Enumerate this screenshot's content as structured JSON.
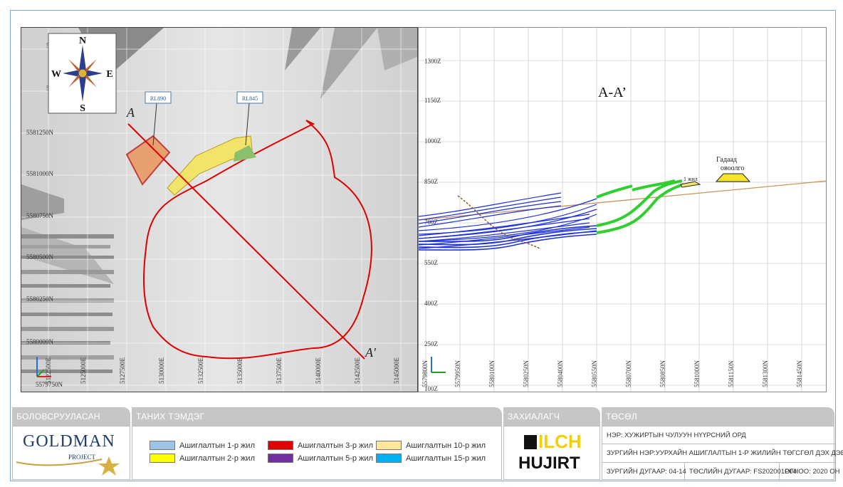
{
  "compass": {
    "n": "N",
    "s": "S",
    "e": "E",
    "w": "W"
  },
  "plan": {
    "northing_labels": [
      "5581250N",
      "5581000N",
      "5580750N",
      "5580500N",
      "5580250N",
      "5580000N",
      "5579750N"
    ],
    "easting_labels": [
      "5125000E",
      "5127500E",
      "5130000E",
      "5132500E",
      "5135000E",
      "5137500E",
      "5140000E",
      "5142500E",
      "5145000E"
    ],
    "partial_northing": "5",
    "first_easting_partial": "5122500E",
    "rl_labels": [
      "RL890",
      "RL845"
    ],
    "section_a": "A",
    "section_a_prime": "A'"
  },
  "section": {
    "title": "A-A’",
    "z_labels": [
      "1300Z",
      "1150Z",
      "1000Z",
      "850Z",
      "700Z",
      "550Z",
      "400Z",
      "250Z",
      "100Z"
    ],
    "n_labels": [
      "5579800N",
      "5579950N",
      "5580100N",
      "5580250N",
      "5580400N",
      "5580550N",
      "5580700N",
      "5580850N",
      "5581000N",
      "5581150N",
      "5581300N",
      "5581450N"
    ],
    "label_vein1": "1 жил",
    "label_dump_1": "Гадаад",
    "label_dump_2": "овоолго"
  },
  "footer": {
    "developed_by_header": "БОЛОВСРУУЛАСАН",
    "logo_main": "GOLDMAN",
    "logo_sub": "PROJECT",
    "legend_header": "ТАНИХ ТЭМДЭГ",
    "legend": [
      {
        "label": "Ашиглалтын 1-р жил",
        "color": "#9dc3e6"
      },
      {
        "label": "Ашиглалтын 2-р жил",
        "color": "#ffff00"
      },
      {
        "label": "Ашиглалтын 3-р жил",
        "color": "#e00000"
      },
      {
        "label": "Ашиглалтын 5-р жил",
        "color": "#7030a0"
      },
      {
        "label": "Ашиглалтын 10-р жил",
        "color": "#ffe699"
      },
      {
        "label": "Ашиглалтын 15-р жил",
        "color": "#00b0f0"
      }
    ],
    "client_header": "ЗАХИАЛАГЧ",
    "client_logo_1": "ILCH",
    "client_logo_2": "HUJIRT",
    "project_header": "ТӨСӨЛ",
    "project_name": "НЭР: ХУЖИРТЫН ЧУЛУУН НҮҮРСНИЙ ОРД",
    "drawing_name": "ЗУРГИЙН НЭР:УУРХАЙН АШИГЛАЛТЫН  1-Р ЖИЛИЙН ТӨГСГӨЛ ДЭХ ДЭВСГЭР ЗУРАГ",
    "drawing_no": "ЗУРГИЙН ДУГААР: 04-14",
    "project_no": "ТӨСЛИЙН ДУГААР: FS202001P04",
    "year": "ОГНОО: 2020 ОН"
  }
}
